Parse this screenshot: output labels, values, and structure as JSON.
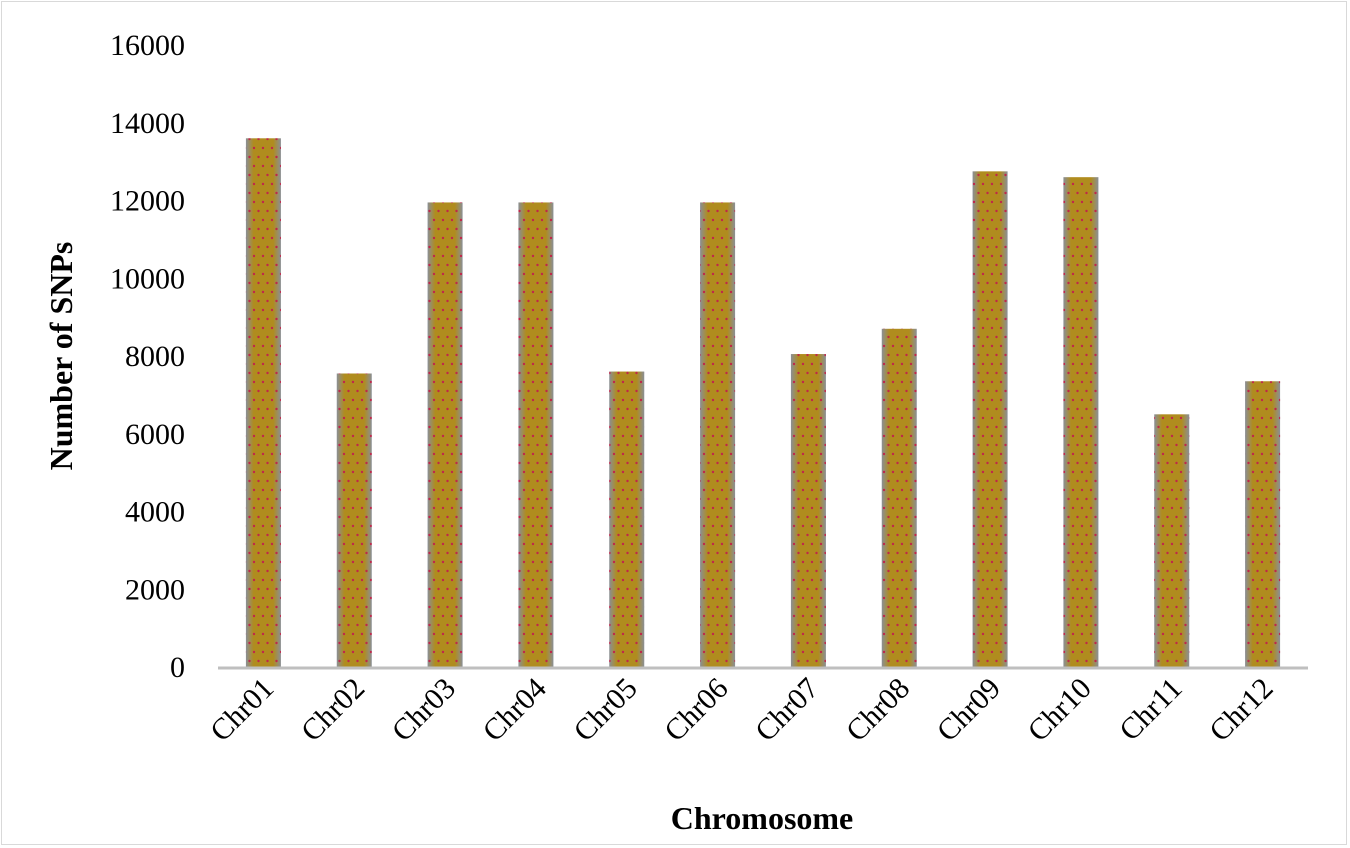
{
  "chart_data": {
    "type": "bar",
    "title": "",
    "xlabel": "Chromosome",
    "ylabel": "Number of SNPs",
    "categories": [
      "Chr01",
      "Chr02",
      "Chr03",
      "Chr04",
      "Chr05",
      "Chr06",
      "Chr07",
      "Chr08",
      "Chr09",
      "Chr10",
      "Chr11",
      "Chr12"
    ],
    "values": [
      13600,
      7550,
      11950,
      11950,
      7600,
      11950,
      8050,
      8700,
      12750,
      12600,
      6500,
      7350
    ],
    "ylim": [
      0,
      16000
    ],
    "yticks": [
      "0",
      "2000",
      "4000",
      "6000",
      "8000",
      "10000",
      "12000",
      "14000",
      "16000"
    ],
    "grid": false,
    "legend": "none",
    "colors": {
      "bar_fill": "#b08c1e",
      "bar_edge": "#8a8f96",
      "bar_dots": "#c0264a",
      "axis_line": "#bfbfbf"
    }
  }
}
